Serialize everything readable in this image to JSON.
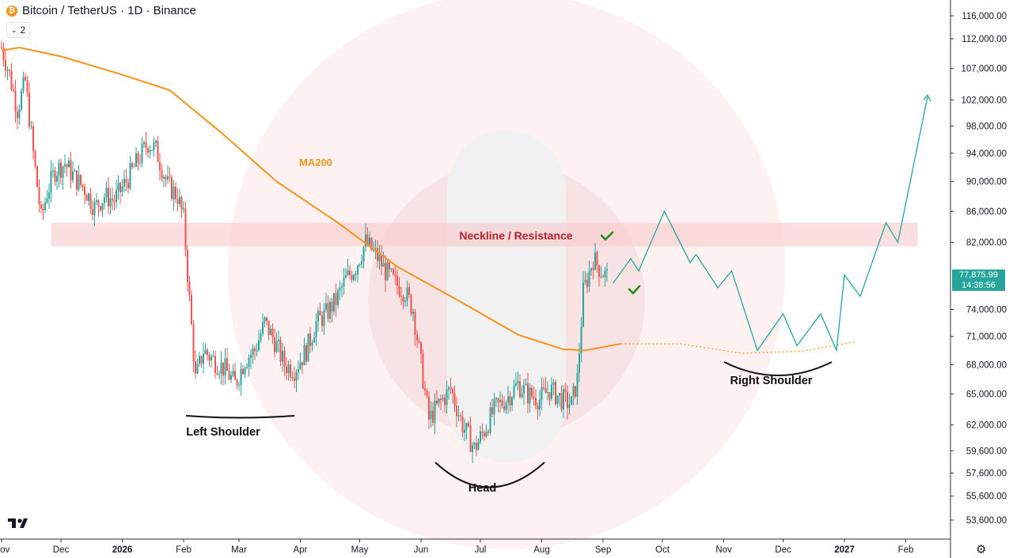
{
  "header": {
    "coin_icon": "bitcoin-icon",
    "title": "Bitcoin / TetherUS · 1D · Binance",
    "indicator_toggle": "2"
  },
  "last_price": {
    "value": "77,875.99",
    "countdown": "14:38:56",
    "color": "#26a69a"
  },
  "colors": {
    "up": "#26a69a",
    "down": "#ef5350",
    "ma": "#f7931a",
    "zone": "#f8c9cc",
    "zone_text": "#b2222c",
    "check": "#1e8f1e",
    "projection": "#26a69a"
  },
  "chart_data": {
    "type": "candlestick",
    "title": "Bitcoin / TetherUS · 1D · Binance",
    "y_ticks": [
      116000,
      112000,
      107000,
      102000,
      98000,
      94000,
      90000,
      86000,
      82000,
      74000,
      71000,
      68000,
      65000,
      62000,
      59600,
      57600,
      55600,
      53600
    ],
    "y_tick_labels": [
      "116,000.00",
      "112,000.00",
      "107,000.00",
      "102,000.00",
      "98,000.00",
      "94,000.00",
      "90,000.00",
      "86,000.00",
      "82,000.00",
      "74,000.00",
      "71,000.00",
      "68,000.00",
      "65,000.00",
      "62,000.00",
      "59,600.00",
      "57,600.00",
      "55,600.00",
      "53,600.00"
    ],
    "y_scale": "log",
    "ylim": [
      52000,
      118000
    ],
    "x_range": [
      "2025-11-01",
      "2027-02-12"
    ],
    "x_ticks": [
      {
        "date": "2025-11-01",
        "label": "Nov"
      },
      {
        "date": "2025-12-01",
        "label": "Dec"
      },
      {
        "date": "2026-01-01",
        "label": "2026",
        "bold": true
      },
      {
        "date": "2026-02-01",
        "label": "Feb"
      },
      {
        "date": "2026-03-01",
        "label": "Mar"
      },
      {
        "date": "2026-04-01",
        "label": "Apr"
      },
      {
        "date": "2026-05-01",
        "label": "May"
      },
      {
        "date": "2026-06-01",
        "label": "Jun"
      },
      {
        "date": "2026-07-01",
        "label": "Jul"
      },
      {
        "date": "2026-08-01",
        "label": "Aug"
      },
      {
        "date": "2026-09-01",
        "label": "Sep"
      },
      {
        "date": "2026-10-01",
        "label": "Oct"
      },
      {
        "date": "2026-11-01",
        "label": "Nov"
      },
      {
        "date": "2026-12-01",
        "label": "Dec"
      },
      {
        "date": "2027-01-01",
        "label": "2027",
        "bold": true
      },
      {
        "date": "2027-02-01",
        "label": "Feb"
      }
    ],
    "price_path": [
      [
        "2025-11-01",
        110500
      ],
      [
        "2025-11-05",
        106000
      ],
      [
        "2025-11-09",
        100500
      ],
      [
        "2025-11-13",
        105000
      ],
      [
        "2025-11-17",
        94000
      ],
      [
        "2025-11-21",
        85000
      ],
      [
        "2025-11-24",
        88500
      ],
      [
        "2025-11-28",
        91500
      ],
      [
        "2025-12-03",
        92500
      ],
      [
        "2025-12-08",
        90500
      ],
      [
        "2025-12-13",
        89000
      ],
      [
        "2025-12-18",
        86500
      ],
      [
        "2025-12-23",
        88000
      ],
      [
        "2025-12-28",
        87500
      ],
      [
        "2026-01-03",
        90000
      ],
      [
        "2026-01-08",
        92500
      ],
      [
        "2026-01-14",
        95500
      ],
      [
        "2026-01-18",
        94500
      ],
      [
        "2026-01-24",
        89500
      ],
      [
        "2026-01-29",
        88000
      ],
      [
        "2026-02-01",
        85000
      ],
      [
        "2026-02-04",
        75000
      ],
      [
        "2026-02-07",
        66500
      ],
      [
        "2026-02-11",
        69500
      ],
      [
        "2026-02-16",
        68500
      ],
      [
        "2026-02-22",
        67500
      ],
      [
        "2026-02-27",
        66000
      ],
      [
        "2026-03-04",
        68500
      ],
      [
        "2026-03-09",
        69500
      ],
      [
        "2026-03-14",
        72500
      ],
      [
        "2026-03-19",
        70500
      ],
      [
        "2026-03-24",
        68000
      ],
      [
        "2026-03-29",
        67500
      ],
      [
        "2026-04-04",
        69500
      ],
      [
        "2026-04-09",
        72500
      ],
      [
        "2026-04-14",
        73500
      ],
      [
        "2026-04-19",
        75000
      ],
      [
        "2026-04-24",
        77500
      ],
      [
        "2026-04-29",
        79000
      ],
      [
        "2026-05-04",
        82000
      ],
      [
        "2026-05-09",
        80500
      ],
      [
        "2026-05-14",
        78500
      ],
      [
        "2026-05-19",
        77000
      ],
      [
        "2026-05-24",
        76000
      ],
      [
        "2026-05-28",
        74000
      ],
      [
        "2026-06-01",
        68000
      ],
      [
        "2026-06-05",
        62500
      ],
      [
        "2026-06-10",
        64000
      ],
      [
        "2026-06-16",
        65500
      ],
      [
        "2026-06-22",
        62000
      ],
      [
        "2026-06-28",
        59800
      ],
      [
        "2026-07-03",
        61500
      ],
      [
        "2026-07-08",
        63500
      ],
      [
        "2026-07-14",
        64500
      ],
      [
        "2026-07-20",
        66000
      ],
      [
        "2026-07-25",
        65000
      ],
      [
        "2026-07-31",
        64500
      ],
      [
        "2026-08-05",
        65500
      ],
      [
        "2026-08-11",
        64500
      ],
      [
        "2026-08-16",
        64000
      ],
      [
        "2026-08-19",
        66500
      ],
      [
        "2026-08-22",
        76000
      ],
      [
        "2026-08-27",
        80000
      ],
      [
        "2026-08-31",
        78500
      ],
      [
        "2026-09-03",
        77876
      ]
    ],
    "ma200": [
      [
        "2025-11-01",
        110000
      ],
      [
        "2025-11-10",
        110500
      ],
      [
        "2025-12-01",
        109000
      ],
      [
        "2026-01-01",
        106000
      ],
      [
        "2026-01-25",
        103500
      ],
      [
        "2026-02-20",
        97000
      ],
      [
        "2026-03-20",
        90000
      ],
      [
        "2026-04-20",
        84500
      ],
      [
        "2026-05-20",
        79000
      ],
      [
        "2026-06-20",
        75000
      ],
      [
        "2026-07-20",
        71200
      ],
      [
        "2026-08-12",
        69600
      ],
      [
        "2026-08-23",
        69500
      ],
      [
        "2026-09-10",
        70200
      ]
    ],
    "ma200_projection": [
      [
        "2026-09-10",
        70200
      ],
      [
        "2026-10-10",
        70200
      ],
      [
        "2026-11-10",
        69200
      ],
      [
        "2026-12-10",
        69400
      ],
      [
        "2027-01-06",
        70400
      ]
    ],
    "projection_path": [
      [
        "2026-09-06",
        77000
      ],
      [
        "2026-09-15",
        80000
      ],
      [
        "2026-09-19",
        78500
      ],
      [
        "2026-10-02",
        86000
      ],
      [
        "2026-10-15",
        79500
      ],
      [
        "2026-10-18",
        80500
      ],
      [
        "2026-10-29",
        76500
      ],
      [
        "2026-11-05",
        78500
      ],
      [
        "2026-11-18",
        69500
      ],
      [
        "2026-12-01",
        73500
      ],
      [
        "2026-12-08",
        70000
      ],
      [
        "2026-12-20",
        73500
      ],
      [
        "2026-12-28",
        69500
      ],
      [
        "2027-01-01",
        78000
      ],
      [
        "2027-01-09",
        75500
      ],
      [
        "2027-01-22",
        84500
      ],
      [
        "2027-01-28",
        82000
      ],
      [
        "2027-02-12",
        102500
      ]
    ],
    "neckline_zone": {
      "from": "2025-11-26",
      "to": "2027-02-07",
      "low": 81500,
      "high": 84500,
      "label": "Neckline / Resistance"
    },
    "ma_label": "MA200",
    "pattern_labels": [
      {
        "text": "Left Shoulder",
        "date": "2026-02-21",
        "price": 61000
      },
      {
        "text": "Head",
        "date": "2026-07-02",
        "price": 56000
      },
      {
        "text": "Right Shoulder",
        "date": "2026-11-25",
        "price": 66000
      }
    ],
    "grid": false,
    "legend": "none"
  }
}
